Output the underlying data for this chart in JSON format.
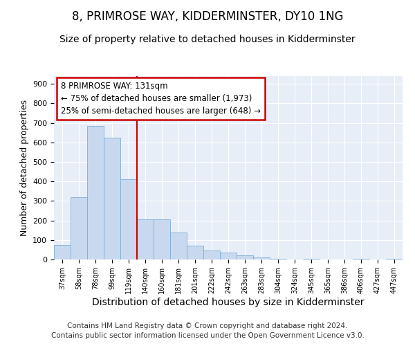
{
  "title": "8, PRIMROSE WAY, KIDDERMINSTER, DY10 1NG",
  "subtitle": "Size of property relative to detached houses in Kidderminster",
  "xlabel": "Distribution of detached houses by size in Kidderminster",
  "ylabel": "Number of detached properties",
  "categories": [
    "37sqm",
    "58sqm",
    "78sqm",
    "99sqm",
    "119sqm",
    "140sqm",
    "160sqm",
    "181sqm",
    "201sqm",
    "222sqm",
    "242sqm",
    "263sqm",
    "283sqm",
    "304sqm",
    "324sqm",
    "345sqm",
    "365sqm",
    "386sqm",
    "406sqm",
    "427sqm",
    "447sqm"
  ],
  "values": [
    75,
    320,
    685,
    625,
    410,
    205,
    205,
    140,
    70,
    45,
    35,
    20,
    10,
    5,
    0,
    5,
    0,
    0,
    5,
    0,
    5
  ],
  "bar_color": "#c8d9ef",
  "bar_edge_color": "#7aadd4",
  "vline_x": 4.5,
  "vline_color": "#cc0000",
  "annotation_text": "8 PRIMROSE WAY: 131sqm\n← 75% of detached houses are smaller (1,973)\n25% of semi-detached houses are larger (648) →",
  "annotation_box_color": "#ffffff",
  "annotation_box_edge_color": "#cc0000",
  "ylim": [
    0,
    940
  ],
  "yticks": [
    0,
    100,
    200,
    300,
    400,
    500,
    600,
    700,
    800,
    900
  ],
  "bg_color": "#e8eef8",
  "footer": "Contains HM Land Registry data © Crown copyright and database right 2024.\nContains public sector information licensed under the Open Government Licence v3.0.",
  "title_fontsize": 12,
  "subtitle_fontsize": 10,
  "xlabel_fontsize": 10,
  "ylabel_fontsize": 9,
  "footer_fontsize": 7.5,
  "annot_fontsize": 8.5
}
